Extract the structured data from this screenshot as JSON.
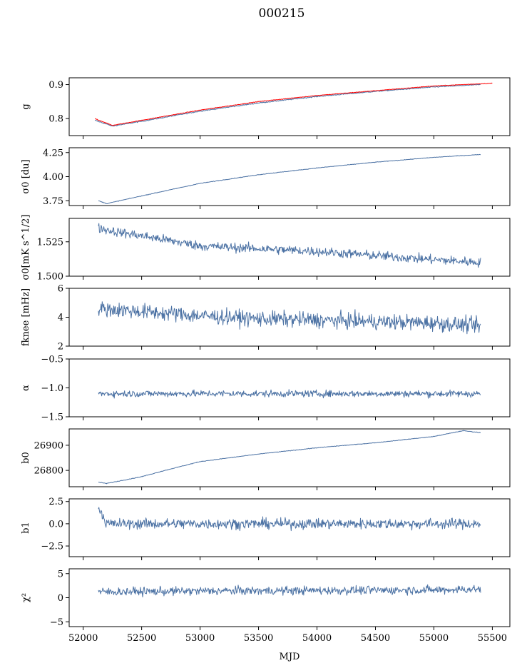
{
  "title": "000215",
  "chart_data": [
    {
      "type": "line",
      "ylabel": "g",
      "ylim": [
        0.75,
        0.92
      ],
      "yticks": [
        0.8,
        0.9
      ],
      "ytick_labels": [
        "0.8",
        "0.9"
      ],
      "series": [
        {
          "color": "#4c72a4",
          "x": [
            52100,
            52250,
            52500,
            53000,
            53500,
            54000,
            54500,
            55000,
            55400
          ],
          "y": [
            0.795,
            0.778,
            0.792,
            0.822,
            0.846,
            0.865,
            0.88,
            0.893,
            0.9
          ]
        },
        {
          "color": "#ff0000",
          "x": [
            52100,
            52250,
            52500,
            53000,
            53500,
            54000,
            54500,
            55000,
            55500
          ],
          "y": [
            0.8,
            0.78,
            0.795,
            0.825,
            0.85,
            0.868,
            0.882,
            0.896,
            0.904
          ]
        }
      ]
    },
    {
      "type": "line",
      "ylabel": "σ0 [du]",
      "ylim": [
        3.7,
        4.3
      ],
      "yticks": [
        3.75,
        4.0,
        4.25
      ],
      "ytick_labels": [
        "3.75",
        "4.00",
        "4.25"
      ],
      "series": [
        {
          "color": "#4c72a4",
          "x": [
            52130,
            52200,
            52500,
            53000,
            53500,
            54000,
            54500,
            55000,
            55400
          ],
          "y": [
            3.75,
            3.72,
            3.8,
            3.93,
            4.02,
            4.09,
            4.15,
            4.2,
            4.23
          ]
        }
      ]
    },
    {
      "type": "line",
      "ylabel": "σ0[mK s^1/2]",
      "ylim": [
        1.5,
        1.542
      ],
      "yticks": [
        1.5,
        1.525
      ],
      "ytick_labels": [
        "1.500",
        "1.525"
      ],
      "series": [
        {
          "color": "#4c72a4",
          "x": [
            52130,
            52300,
            52600,
            53000,
            53500,
            54000,
            54500,
            55000,
            55400
          ],
          "y": [
            1.535,
            1.532,
            1.528,
            1.522,
            1.52,
            1.518,
            1.515,
            1.512,
            1.51
          ]
        }
      ]
    },
    {
      "type": "line",
      "ylabel": "fknee [mHz]",
      "ylim": [
        2,
        6
      ],
      "yticks": [
        2,
        4,
        6
      ],
      "ytick_labels": [
        "2",
        "4",
        "6"
      ],
      "series": [
        {
          "color": "#4c72a4",
          "x": [
            52130,
            52500,
            53000,
            53500,
            54000,
            54500,
            55000,
            55400
          ],
          "y": [
            4.6,
            4.4,
            4.1,
            3.9,
            3.8,
            3.7,
            3.6,
            3.4
          ]
        }
      ]
    },
    {
      "type": "line",
      "ylabel": "α",
      "ylim": [
        -1.5,
        -0.5
      ],
      "yticks": [
        -1.5,
        -1.0,
        -0.5
      ],
      "ytick_labels": [
        "−1.5",
        "−1.0",
        "−0.5"
      ],
      "series": [
        {
          "color": "#4c72a4",
          "x": [
            52130,
            53000,
            54000,
            55000,
            55400
          ],
          "y": [
            -1.1,
            -1.1,
            -1.1,
            -1.1,
            -1.1
          ]
        }
      ]
    },
    {
      "type": "line",
      "ylabel": "b0",
      "ylim": [
        26735,
        26965
      ],
      "yticks": [
        26800,
        26900
      ],
      "ytick_labels": [
        "26800",
        "26900"
      ],
      "series": [
        {
          "color": "#4c72a4",
          "x": [
            52130,
            52200,
            52500,
            52700,
            53000,
            53500,
            54000,
            54500,
            55000,
            55250,
            55400
          ],
          "y": [
            26753,
            26748,
            26775,
            26800,
            26835,
            26865,
            26890,
            26910,
            26935,
            26958,
            26950
          ]
        }
      ]
    },
    {
      "type": "line",
      "ylabel": "b1",
      "ylim": [
        -3.7,
        2.8
      ],
      "yticks": [
        -2.5,
        0,
        2.5
      ],
      "ytick_labels": [
        "−2.5",
        "0.0",
        "2.5"
      ],
      "series": [
        {
          "color": "#4c72a4",
          "x": [
            52130,
            52200,
            53000,
            54000,
            55000,
            55400
          ],
          "y": [
            2.0,
            0.0,
            0.0,
            0.0,
            0.0,
            0.0
          ]
        }
      ]
    },
    {
      "type": "line",
      "ylabel": "χ²",
      "xlabel": "MJD",
      "ylim": [
        -6,
        6
      ],
      "yticks": [
        -5,
        0,
        5
      ],
      "ytick_labels": [
        "−5",
        "0",
        "5"
      ],
      "xticks": [
        52000,
        52500,
        53000,
        53500,
        54000,
        54500,
        55000,
        55500
      ],
      "xtick_labels": [
        "52000",
        "52500",
        "53000",
        "53500",
        "54000",
        "54500",
        "55000",
        "55500"
      ],
      "xlim": [
        51880,
        55650
      ],
      "series": [
        {
          "color": "#4c72a4",
          "x": [
            52130,
            53000,
            54000,
            55000,
            55400
          ],
          "y": [
            1.2,
            1.4,
            1.5,
            1.6,
            1.8
          ]
        }
      ]
    }
  ]
}
